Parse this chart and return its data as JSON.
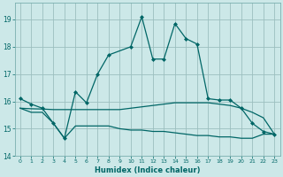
{
  "title": "",
  "xlabel": "Humidex (Indice chaleur)",
  "ylabel": "",
  "bg_color": "#cce8e8",
  "grid_color": "#9bbfbf",
  "line_color": "#006666",
  "xlim": [
    -0.5,
    23.5
  ],
  "ylim": [
    14,
    19.6
  ],
  "yticks": [
    14,
    15,
    16,
    17,
    18,
    19
  ],
  "xticks": [
    0,
    1,
    2,
    3,
    4,
    5,
    6,
    7,
    8,
    9,
    10,
    11,
    12,
    13,
    14,
    15,
    16,
    17,
    18,
    19,
    20,
    21,
    22,
    23
  ],
  "series1_x": [
    0,
    1,
    2,
    3,
    4,
    5,
    6,
    7,
    8,
    10,
    11,
    12,
    13,
    14,
    15,
    16,
    17,
    18,
    19,
    20,
    21,
    22,
    23
  ],
  "series1_y": [
    16.1,
    15.9,
    15.75,
    15.2,
    14.65,
    16.35,
    15.95,
    17.0,
    17.7,
    18.0,
    19.1,
    17.55,
    17.55,
    18.85,
    18.3,
    18.1,
    16.1,
    16.05,
    16.05,
    15.75,
    15.2,
    14.9,
    14.8
  ],
  "series2_x": [
    0,
    1,
    2,
    3,
    4,
    5,
    6,
    7,
    8,
    9,
    10,
    11,
    12,
    13,
    14,
    15,
    16,
    17,
    18,
    19,
    20,
    21,
    22,
    23
  ],
  "series2_y": [
    15.75,
    15.73,
    15.72,
    15.7,
    15.7,
    15.7,
    15.7,
    15.7,
    15.7,
    15.7,
    15.75,
    15.8,
    15.85,
    15.9,
    15.95,
    15.95,
    15.95,
    15.95,
    15.9,
    15.85,
    15.75,
    15.6,
    15.4,
    14.8
  ],
  "series3_x": [
    0,
    1,
    2,
    3,
    4,
    5,
    6,
    7,
    8,
    9,
    10,
    11,
    12,
    13,
    14,
    15,
    16,
    17,
    18,
    19,
    20,
    21,
    22,
    23
  ],
  "series3_y": [
    15.75,
    15.6,
    15.6,
    15.2,
    14.65,
    15.1,
    15.1,
    15.1,
    15.1,
    15.0,
    14.95,
    14.95,
    14.9,
    14.9,
    14.85,
    14.8,
    14.75,
    14.75,
    14.7,
    14.7,
    14.65,
    14.65,
    14.8,
    14.8
  ]
}
